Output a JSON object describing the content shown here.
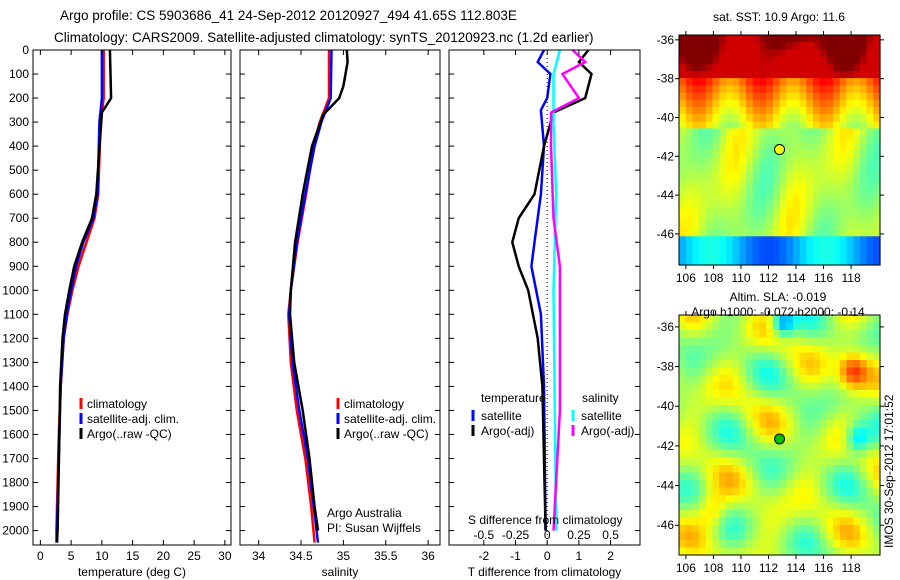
{
  "header": {
    "title_line1": "Argo profile: CS 5903686_41 24-Sep-2012 20120927_494 41.65S 112.803E",
    "title_line2": "Climatology: CARS2009. Satellite-adjusted climatology: synTS_20120923.nc (1.2d earlier)"
  },
  "colors": {
    "climatology": "#ff0000",
    "satellite": "#0000ff",
    "argo": "#000000",
    "s_satellite": "#00ffff",
    "s_argo": "#ff00ff"
  },
  "chart_data": [
    {
      "type": "line",
      "name": "temperature-profile",
      "xlabel": "temperature (deg C)",
      "ylabel": "",
      "xlim": [
        -1.2,
        31
      ],
      "ylim": [
        2060,
        0
      ],
      "xticks": [
        0,
        5,
        10,
        15,
        20,
        25,
        30
      ],
      "yticks": [
        0,
        100,
        200,
        300,
        400,
        500,
        600,
        700,
        800,
        900,
        1000,
        1100,
        1200,
        1300,
        1400,
        1500,
        1600,
        1700,
        1800,
        1900,
        2000
      ],
      "legend": [
        "climatology",
        "satellite-adj. clim.",
        "Argo(..raw -QC)"
      ],
      "legend_placement": "lower-middle",
      "series": [
        {
          "name": "climatology",
          "color": "#ff0000",
          "depth": [
            0,
            200,
            300,
            600,
            700,
            800,
            900,
            1000,
            1100,
            1200,
            1400,
            1600,
            2000,
            2050
          ],
          "values": [
            10.3,
            10.3,
            9.8,
            9.4,
            8.8,
            7.5,
            6.2,
            5.2,
            4.4,
            3.8,
            3.3,
            3.0,
            2.6,
            2.6
          ]
        },
        {
          "name": "satellite-adj. clim.",
          "color": "#0000ff",
          "depth": [
            0,
            200,
            300,
            600,
            700,
            800,
            900,
            1000,
            1100,
            1200,
            1400,
            1600,
            2000,
            2050
          ],
          "values": [
            10.0,
            10.0,
            9.6,
            9.3,
            8.6,
            7.0,
            5.8,
            5.0,
            4.3,
            3.8,
            3.3,
            3.1,
            2.7,
            2.7
          ]
        },
        {
          "name": "Argo(..raw -QC)",
          "color": "#000000",
          "depth": [
            0,
            200,
            260,
            600,
            700,
            800,
            900,
            1000,
            1100,
            1200,
            1400,
            1600,
            2000,
            2050
          ],
          "values": [
            11.3,
            11.5,
            10.0,
            9.1,
            8.4,
            6.8,
            5.5,
            4.7,
            4.0,
            3.6,
            3.2,
            3.1,
            2.8,
            2.7
          ]
        }
      ]
    },
    {
      "type": "line",
      "name": "salinity-profile",
      "xlabel": "salinity",
      "xlim": [
        33.78,
        36.14
      ],
      "ylim": [
        2060,
        0
      ],
      "xticks": [
        34,
        34.5,
        35,
        35.5,
        36
      ],
      "legend": [
        "climatology",
        "satellite-adj. clim.",
        "Argo(..raw -QC)"
      ],
      "annotations": [
        "Argo Australia",
        "PI: Susan Wijffels"
      ],
      "series": [
        {
          "name": "climatology",
          "color": "#ff0000",
          "depth": [
            0,
            200,
            300,
            400,
            600,
            800,
            1000,
            1100,
            1300,
            1500,
            1700,
            1900,
            2050
          ],
          "values": [
            34.83,
            34.83,
            34.72,
            34.65,
            34.56,
            34.46,
            34.38,
            34.35,
            34.38,
            34.45,
            34.55,
            34.62,
            34.66
          ]
        },
        {
          "name": "satellite-adj. clim.",
          "color": "#0000ff",
          "depth": [
            0,
            200,
            300,
            400,
            600,
            800,
            1000,
            1100,
            1300,
            1500,
            1700,
            1900,
            2050
          ],
          "values": [
            34.86,
            34.85,
            34.74,
            34.66,
            34.55,
            34.45,
            34.38,
            34.36,
            34.4,
            34.48,
            34.58,
            34.65,
            34.7
          ]
        },
        {
          "name": "Argo(..raw -QC)",
          "color": "#000000",
          "depth": [
            0,
            50,
            150,
            200,
            270,
            400,
            600,
            800,
            1000,
            1100,
            1300,
            1500,
            1700,
            1900,
            2000
          ],
          "values": [
            35.04,
            35.05,
            35.0,
            34.95,
            34.76,
            34.63,
            34.52,
            34.43,
            34.38,
            34.37,
            34.42,
            34.52,
            34.6,
            34.66,
            34.7
          ]
        }
      ]
    },
    {
      "type": "line",
      "name": "difference-profile",
      "xlabel": "T difference from climatology",
      "x2label": "S difference from climatology",
      "xlim": [
        -3.1,
        2.93
      ],
      "ylim": [
        2060,
        0
      ],
      "xticks": [
        "-2",
        "-1",
        "0",
        "1",
        "2"
      ],
      "x2ticks": [
        "-0.5",
        "-0.25",
        "0",
        "0.25",
        "0.5"
      ],
      "s_scale": 4,
      "legend_temperature": {
        "title": "temperature",
        "items": [
          "satellite",
          "Argo(-adj)"
        ]
      },
      "legend_salinity": {
        "title": "salinity",
        "items": [
          "satellite",
          "Argo(-adj)"
        ]
      },
      "series": [
        {
          "name": "T satellite",
          "color": "#0000ff",
          "units": "T",
          "depth": [
            0,
            50,
            100,
            200,
            250,
            400,
            600,
            800,
            900,
            1100,
            1400,
            2000
          ],
          "values": [
            -0.1,
            -0.3,
            0.1,
            0.0,
            -0.2,
            -0.1,
            -0.2,
            -0.4,
            -0.5,
            -0.2,
            -0.1,
            -0.05
          ]
        },
        {
          "name": "T Argo(-adj)",
          "color": "#000000",
          "units": "T",
          "depth": [
            0,
            50,
            100,
            200,
            260,
            400,
            600,
            700,
            800,
            900,
            1000,
            1200,
            1400,
            2000
          ],
          "values": [
            1.3,
            1.0,
            1.4,
            1.2,
            0.2,
            -0.1,
            -0.4,
            -0.9,
            -1.1,
            -0.9,
            -0.6,
            -0.3,
            -0.15,
            -0.05
          ]
        },
        {
          "name": "S satellite",
          "color": "#00ffff",
          "units": "S",
          "depth": [
            0,
            100,
            300,
            600,
            1000,
            2000
          ],
          "values": [
            0.1,
            0.05,
            0.05,
            0.07,
            0.05,
            0.07
          ]
        },
        {
          "name": "S Argo(-adj)",
          "color": "#ff00ff",
          "units": "S",
          "depth": [
            0,
            50,
            100,
            200,
            260,
            400,
            700,
            900,
            1200,
            1500,
            2000
          ],
          "values": [
            0.2,
            0.3,
            0.12,
            0.25,
            0.03,
            0.03,
            0.05,
            0.1,
            0.1,
            0.1,
            0.05
          ]
        }
      ]
    },
    {
      "type": "heatmap",
      "name": "sst-map",
      "title": "sat. SST: 10.9 Argo: 11.6",
      "xlim": [
        105.5,
        120.1
      ],
      "ylim": [
        -47.6,
        -35.75
      ],
      "xticks": [
        "106",
        "108",
        "110",
        "112",
        "114",
        "116",
        "118"
      ],
      "yticks": [
        "-36",
        "-38",
        "-40",
        "-42",
        "-44",
        "-46"
      ],
      "marker": {
        "lon": 112.803,
        "lat": -41.65,
        "color": "#ffff00"
      }
    },
    {
      "type": "heatmap",
      "name": "sla-map",
      "title": "Altim. SLA: -0.019",
      "subtitle": "Argo h1000: -0.072 h2000: -0.14",
      "xlim": [
        105.5,
        120.1
      ],
      "ylim": [
        -47.5,
        -35.4
      ],
      "xticks": [
        "106",
        "108",
        "110",
        "112",
        "114",
        "116",
        "118"
      ],
      "yticks": [
        "-36",
        "-38",
        "-40",
        "-42",
        "-44",
        "-46"
      ],
      "marker": {
        "lon": 112.803,
        "lat": -41.65,
        "color": "#00c000"
      }
    }
  ],
  "footer": {
    "stamp": "IMOS 30-Sep-2012 17:01:52"
  }
}
